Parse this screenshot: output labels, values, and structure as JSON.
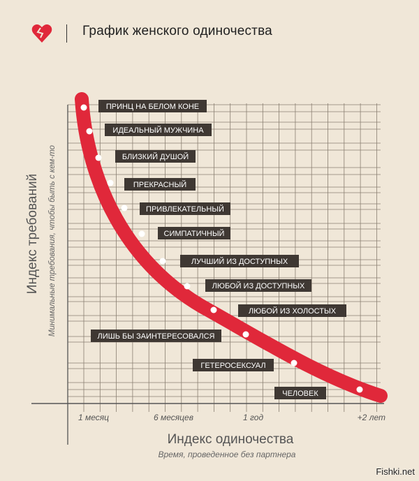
{
  "header": {
    "title": "График женского одиночества",
    "logo_icon": "broken-heart-icon",
    "accent": "#e0283a"
  },
  "chart_data": {
    "type": "line",
    "title": "График женского одиночества",
    "xlabel": "Индекс одиночества",
    "xsublabel": "Время, проведенное без партнера",
    "ylabel": "Индекс требований",
    "ysublabel": "Минимальные требования, чтобы быть с кем-то",
    "x_ticks": [
      "1 месяц",
      "6 месяцев",
      "1 год",
      "+2 лет"
    ],
    "points": [
      {
        "label": "ПРИНЦ НА БЕЛОМ КОНЕ",
        "requirement": 12
      },
      {
        "label": "ИДЕАЛЬНЫЙ МУЖЧИНА",
        "requirement": 11
      },
      {
        "label": "БЛИЗКИЙ ДУШОЙ",
        "requirement": 10
      },
      {
        "label": "ПРЕКРАСНЫЙ",
        "requirement": 9
      },
      {
        "label": "ПРИВЛЕКАТЕЛЬНЫЙ",
        "requirement": 8
      },
      {
        "label": "СИМПАТИЧНЫЙ",
        "requirement": 7
      },
      {
        "label": "ЛУЧШИЙ ИЗ ДОСТУПНЫХ",
        "requirement": 6
      },
      {
        "label": "ЛЮБОЙ ИЗ ДОСТУПНЫХ",
        "requirement": 5
      },
      {
        "label": "ЛЮБОЙ ИЗ ХОЛОСТЫХ",
        "requirement": 4
      },
      {
        "label": "ЛИШЬ БЫ ЗАИНТЕРЕСОВАЛСЯ",
        "requirement": 3
      },
      {
        "label": "ГЕТЕРОСЕКСУАЛ",
        "requirement": 2
      },
      {
        "label": "ЧЕЛОВЕК",
        "requirement": 1
      }
    ],
    "curve_color": "#e0283a",
    "label_bg": "#3f3833",
    "grid": true
  },
  "watermark": "Fishki.net"
}
